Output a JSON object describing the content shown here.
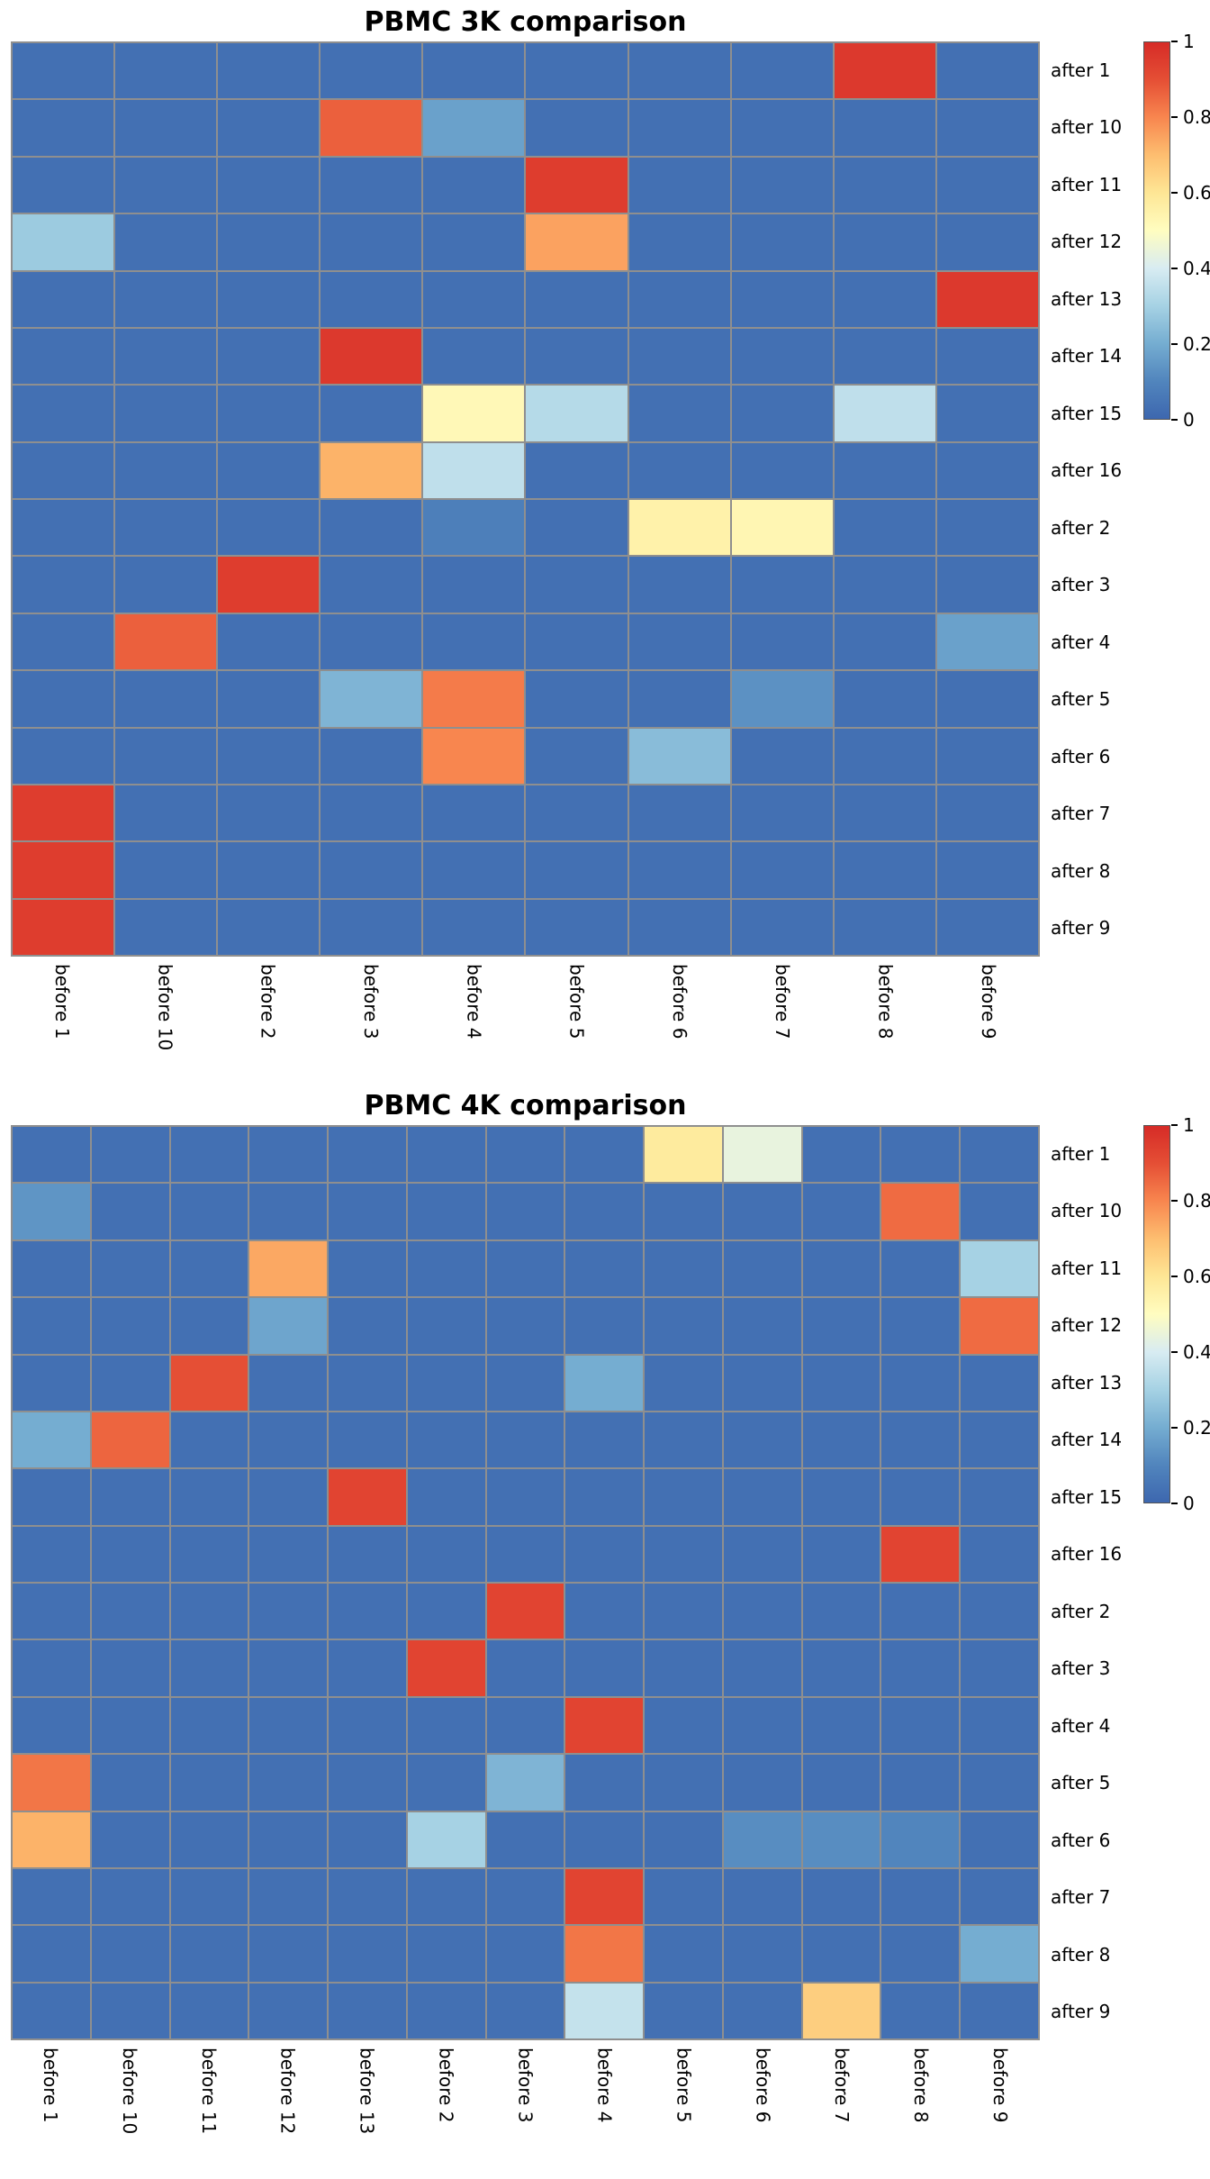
{
  "styles": {
    "background": "#ffffff",
    "text_color": "#000000",
    "grid_line_color": "#8f8f8f",
    "colorbar_border_color": "#555555"
  },
  "colormap": {
    "name": "RdYlBu_r",
    "stops": [
      {
        "t": 0.0,
        "color": "#3d67af"
      },
      {
        "t": 0.1,
        "color": "#5185bd"
      },
      {
        "t": 0.2,
        "color": "#75add1"
      },
      {
        "t": 0.3,
        "color": "#a6d2e4"
      },
      {
        "t": 0.4,
        "color": "#d8ecf2"
      },
      {
        "t": 0.5,
        "color": "#fffdc0"
      },
      {
        "t": 0.6,
        "color": "#fee695"
      },
      {
        "t": 0.7,
        "color": "#fdbe70"
      },
      {
        "t": 0.8,
        "color": "#f8864f"
      },
      {
        "t": 0.9,
        "color": "#e54f35"
      },
      {
        "t": 1.0,
        "color": "#d62b27"
      }
    ]
  },
  "chart_data": [
    {
      "type": "heatmap",
      "title": "PBMC 3K comparison",
      "vmin": 0,
      "vmax": 1,
      "legend_position": "right",
      "colorbar_ticks": [
        {
          "label": "1",
          "value": 1.0
        },
        {
          "label": "0.8",
          "value": 0.8
        },
        {
          "label": "0.6",
          "value": 0.6
        },
        {
          "label": "0.4",
          "value": 0.4
        },
        {
          "label": "0.2",
          "value": 0.2
        },
        {
          "label": "0",
          "value": 0.0
        }
      ],
      "rows": [
        "after 1",
        "after 10",
        "after 11",
        "after 12",
        "after 13",
        "after 14",
        "after 15",
        "after 16",
        "after 2",
        "after 3",
        "after 4",
        "after 5",
        "after 6",
        "after 7",
        "after 8",
        "after 9"
      ],
      "columns": [
        "before 1",
        "before 10",
        "before 2",
        "before 3",
        "before 4",
        "before 5",
        "before 6",
        "before 7",
        "before 8",
        "before 9"
      ],
      "matrix": [
        [
          0.03,
          0.03,
          0.03,
          0.03,
          0.03,
          0.03,
          0.03,
          0.03,
          0.96,
          0.03
        ],
        [
          0.03,
          0.03,
          0.03,
          0.87,
          0.17,
          0.03,
          0.03,
          0.03,
          0.03,
          0.03
        ],
        [
          0.03,
          0.03,
          0.03,
          0.03,
          0.03,
          0.95,
          0.03,
          0.03,
          0.03,
          0.03
        ],
        [
          0.28,
          0.03,
          0.03,
          0.03,
          0.03,
          0.75,
          0.03,
          0.03,
          0.03,
          0.03
        ],
        [
          0.03,
          0.03,
          0.03,
          0.03,
          0.03,
          0.03,
          0.03,
          0.03,
          0.03,
          0.96
        ],
        [
          0.03,
          0.03,
          0.03,
          0.96,
          0.03,
          0.03,
          0.03,
          0.03,
          0.03,
          0.03
        ],
        [
          0.03,
          0.03,
          0.03,
          0.03,
          0.52,
          0.33,
          0.03,
          0.03,
          0.35,
          0.03
        ],
        [
          0.03,
          0.03,
          0.03,
          0.72,
          0.35,
          0.03,
          0.03,
          0.03,
          0.03,
          0.03
        ],
        [
          0.03,
          0.03,
          0.03,
          0.03,
          0.08,
          0.03,
          0.55,
          0.53,
          0.03,
          0.03
        ],
        [
          0.03,
          0.03,
          0.95,
          0.03,
          0.03,
          0.03,
          0.03,
          0.03,
          0.03,
          0.03
        ],
        [
          0.03,
          0.87,
          0.03,
          0.03,
          0.03,
          0.03,
          0.03,
          0.03,
          0.03,
          0.17
        ],
        [
          0.03,
          0.03,
          0.03,
          0.22,
          0.82,
          0.03,
          0.03,
          0.13,
          0.03,
          0.03
        ],
        [
          0.03,
          0.03,
          0.03,
          0.03,
          0.8,
          0.03,
          0.24,
          0.03,
          0.03,
          0.03
        ],
        [
          0.95,
          0.03,
          0.03,
          0.03,
          0.03,
          0.03,
          0.03,
          0.03,
          0.03,
          0.03
        ],
        [
          0.95,
          0.03,
          0.03,
          0.03,
          0.03,
          0.03,
          0.03,
          0.03,
          0.03,
          0.03
        ],
        [
          0.95,
          0.03,
          0.03,
          0.03,
          0.03,
          0.03,
          0.03,
          0.03,
          0.03,
          0.03
        ]
      ]
    },
    {
      "type": "heatmap",
      "title": "PBMC 4K comparison",
      "vmin": 0,
      "vmax": 1,
      "legend_position": "right",
      "colorbar_ticks": [
        {
          "label": "1",
          "value": 1.0
        },
        {
          "label": "0.8",
          "value": 0.8
        },
        {
          "label": "0.6",
          "value": 0.6
        },
        {
          "label": "0.4",
          "value": 0.4
        },
        {
          "label": "0.2",
          "value": 0.2
        },
        {
          "label": "0",
          "value": 0.0
        }
      ],
      "rows": [
        "after 1",
        "after 10",
        "after 11",
        "after 12",
        "after 13",
        "after 14",
        "after 15",
        "after 16",
        "after 2",
        "after 3",
        "after 4",
        "after 5",
        "after 6",
        "after 7",
        "after 8",
        "after 9"
      ],
      "columns": [
        "before 1",
        "before 10",
        "before 11",
        "before 12",
        "before 13",
        "before 2",
        "before 3",
        "before 4",
        "before 5",
        "before 6",
        "before 7",
        "before 8",
        "before 9"
      ],
      "matrix": [
        [
          0.03,
          0.03,
          0.03,
          0.03,
          0.03,
          0.03,
          0.03,
          0.03,
          0.58,
          0.44,
          0.03,
          0.03,
          0.03
        ],
        [
          0.14,
          0.03,
          0.03,
          0.03,
          0.03,
          0.03,
          0.03,
          0.03,
          0.03,
          0.03,
          0.03,
          0.85,
          0.03
        ],
        [
          0.03,
          0.03,
          0.03,
          0.74,
          0.03,
          0.03,
          0.03,
          0.03,
          0.03,
          0.03,
          0.03,
          0.03,
          0.3
        ],
        [
          0.03,
          0.03,
          0.03,
          0.18,
          0.03,
          0.03,
          0.03,
          0.03,
          0.03,
          0.03,
          0.03,
          0.03,
          0.85
        ],
        [
          0.03,
          0.03,
          0.9,
          0.03,
          0.03,
          0.03,
          0.03,
          0.2,
          0.03,
          0.03,
          0.03,
          0.03,
          0.03
        ],
        [
          0.2,
          0.86,
          0.03,
          0.03,
          0.03,
          0.03,
          0.03,
          0.03,
          0.03,
          0.03,
          0.03,
          0.03,
          0.03
        ],
        [
          0.03,
          0.03,
          0.03,
          0.03,
          0.93,
          0.03,
          0.03,
          0.03,
          0.03,
          0.03,
          0.03,
          0.03,
          0.03
        ],
        [
          0.03,
          0.03,
          0.03,
          0.03,
          0.03,
          0.03,
          0.03,
          0.03,
          0.03,
          0.03,
          0.03,
          0.93,
          0.03
        ],
        [
          0.03,
          0.03,
          0.03,
          0.03,
          0.03,
          0.03,
          0.93,
          0.03,
          0.03,
          0.03,
          0.03,
          0.03,
          0.03
        ],
        [
          0.03,
          0.03,
          0.03,
          0.03,
          0.03,
          0.93,
          0.03,
          0.03,
          0.03,
          0.03,
          0.03,
          0.03,
          0.03
        ],
        [
          0.03,
          0.03,
          0.03,
          0.03,
          0.03,
          0.03,
          0.03,
          0.93,
          0.03,
          0.03,
          0.03,
          0.03,
          0.03
        ],
        [
          0.83,
          0.03,
          0.03,
          0.03,
          0.03,
          0.03,
          0.22,
          0.03,
          0.03,
          0.03,
          0.03,
          0.03,
          0.03
        ],
        [
          0.72,
          0.03,
          0.03,
          0.03,
          0.03,
          0.3,
          0.03,
          0.03,
          0.03,
          0.12,
          0.12,
          0.1,
          0.03
        ],
        [
          0.03,
          0.03,
          0.03,
          0.03,
          0.03,
          0.03,
          0.03,
          0.93,
          0.03,
          0.03,
          0.03,
          0.03,
          0.03
        ],
        [
          0.03,
          0.03,
          0.03,
          0.03,
          0.03,
          0.03,
          0.03,
          0.83,
          0.03,
          0.03,
          0.03,
          0.03,
          0.2
        ],
        [
          0.03,
          0.03,
          0.03,
          0.03,
          0.03,
          0.03,
          0.03,
          0.36,
          0.03,
          0.03,
          0.66,
          0.03,
          0.03
        ]
      ]
    }
  ]
}
